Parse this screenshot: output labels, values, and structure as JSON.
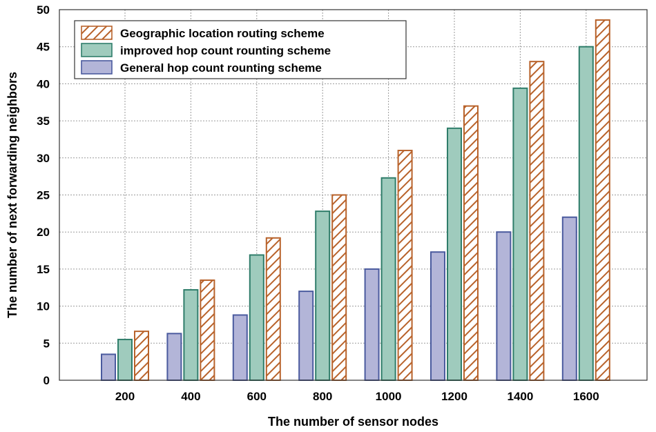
{
  "chart_data": {
    "type": "bar",
    "title": "",
    "xlabel": "The number of sensor nodes",
    "ylabel": "The number of next forwarding neighbors",
    "categories": [
      "200",
      "400",
      "600",
      "800",
      "1000",
      "1200",
      "1400",
      "1600"
    ],
    "ylim": [
      0,
      50
    ],
    "yticks": [
      "0",
      "5",
      "10",
      "15",
      "20",
      "25",
      "30",
      "35",
      "40",
      "45",
      "50"
    ],
    "grid": true,
    "legend_position": "top-left",
    "series": [
      {
        "name": "General hop count rounting scheme",
        "key": "general",
        "fill": "#b3b5d8",
        "stroke": "#4a5a9e",
        "pattern": "solid",
        "values": [
          3.5,
          6.3,
          8.8,
          12.0,
          15.0,
          17.3,
          20.0,
          22.0
        ]
      },
      {
        "name": "improved hop count rounting scheme",
        "key": "improved",
        "fill": "#9fcbbd",
        "stroke": "#2f7d6a",
        "pattern": "solid",
        "values": [
          5.5,
          12.2,
          16.9,
          22.8,
          27.3,
          34.0,
          39.4,
          45.0
        ]
      },
      {
        "name": "Geographic location routing  scheme",
        "key": "geographic",
        "fill": "#ffffff",
        "stroke": "#b8622a",
        "pattern": "hatch",
        "values": [
          6.6,
          13.5,
          19.2,
          25.0,
          31.0,
          37.0,
          43.0,
          48.6
        ]
      }
    ],
    "legend_order": [
      2,
      1,
      0
    ]
  }
}
